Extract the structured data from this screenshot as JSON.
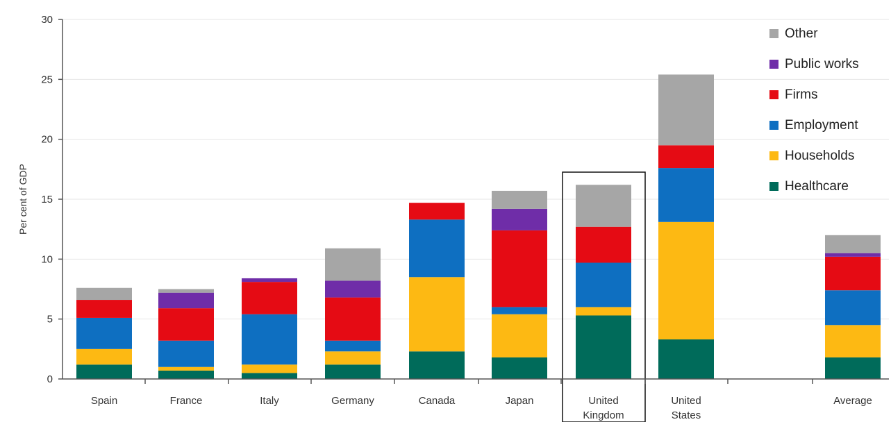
{
  "chart_data": {
    "type": "bar",
    "stacked": true,
    "ylabel": "Per cent of GDP",
    "ylim": [
      0,
      30
    ],
    "yticks": [
      0,
      5,
      10,
      15,
      20,
      25,
      30
    ],
    "grid": true,
    "legend_position": "top-right",
    "categories": [
      "Spain",
      "France",
      "Italy",
      "Germany",
      "Canada",
      "Japan",
      "United Kingdom",
      "United States",
      "Average"
    ],
    "category_lines": [
      [
        "Spain"
      ],
      [
        "France"
      ],
      [
        "Italy"
      ],
      [
        "Germany"
      ],
      [
        "Canada"
      ],
      [
        "Japan"
      ],
      [
        "United",
        "Kingdom"
      ],
      [
        "United",
        "States"
      ],
      [
        "Average"
      ]
    ],
    "highlighted_category": "United Kingdom",
    "series": [
      {
        "name": "Healthcare",
        "color": "#006b5a",
        "values": [
          1.2,
          0.7,
          0.5,
          1.2,
          2.3,
          1.8,
          5.3,
          3.3,
          1.8
        ]
      },
      {
        "name": "Households",
        "color": "#fdb913",
        "values": [
          1.3,
          0.3,
          0.7,
          1.1,
          6.2,
          3.6,
          0.7,
          9.8,
          2.7
        ]
      },
      {
        "name": "Employment",
        "color": "#0e6fc1",
        "values": [
          2.6,
          2.2,
          4.2,
          0.9,
          4.8,
          0.6,
          3.7,
          4.5,
          2.9
        ]
      },
      {
        "name": "Firms",
        "color": "#e50b14",
        "values": [
          1.5,
          2.7,
          2.7,
          3.6,
          1.4,
          6.4,
          3.0,
          1.9,
          2.8
        ]
      },
      {
        "name": "Public works",
        "color": "#6f2da8",
        "values": [
          0.0,
          1.3,
          0.3,
          1.4,
          0.0,
          1.8,
          0.0,
          0.0,
          0.3
        ]
      },
      {
        "name": "Other",
        "color": "#a6a6a6",
        "values": [
          1.0,
          0.3,
          0.0,
          2.7,
          0.0,
          1.5,
          3.5,
          5.9,
          1.5
        ]
      }
    ],
    "legend_order": [
      "Other",
      "Public works",
      "Firms",
      "Employment",
      "Households",
      "Healthcare"
    ]
  }
}
